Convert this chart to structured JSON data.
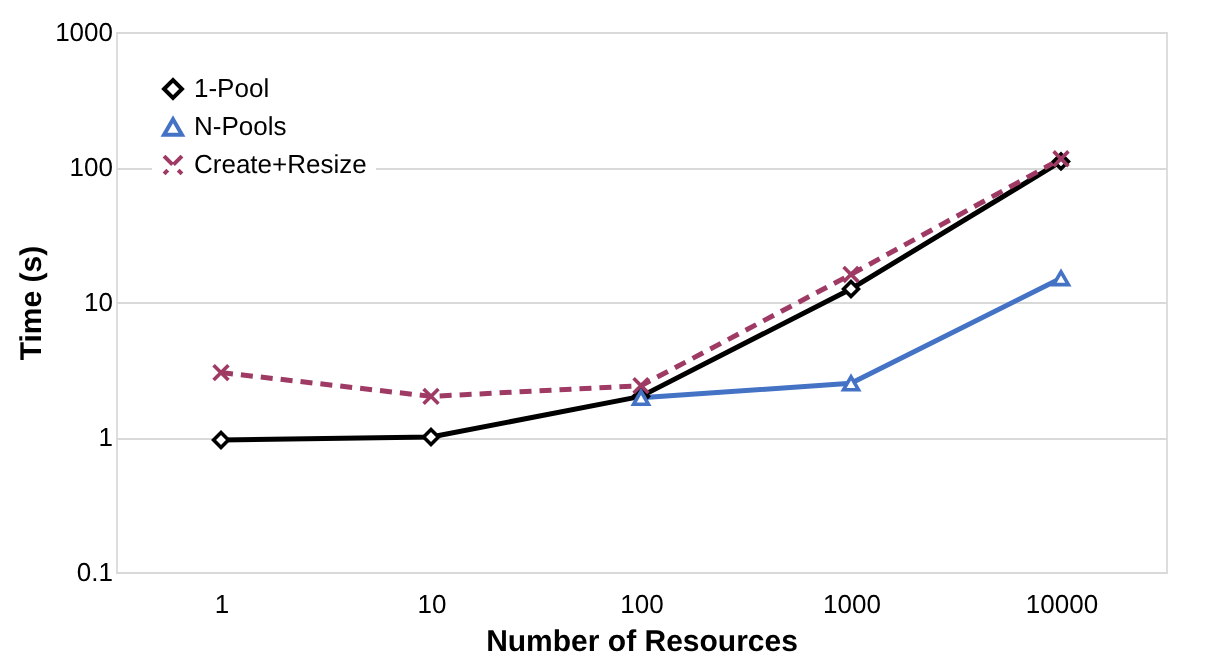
{
  "chart_data": {
    "type": "line",
    "xlabel": "Number of Resources",
    "ylabel": "Time (s)",
    "categories": [
      "1",
      "10",
      "100",
      "1000",
      "10000"
    ],
    "series": [
      {
        "name": "1-Pool",
        "color": "#000000",
        "marker": "diamond",
        "line_style": "solid",
        "values": [
          0.95,
          1.0,
          2.0,
          12.5,
          110
        ]
      },
      {
        "name": "N-Pools",
        "color": "#4472c4",
        "marker": "triangle",
        "line_style": "solid",
        "values": [
          null,
          null,
          1.95,
          2.5,
          15
        ]
      },
      {
        "name": "Create+Resize",
        "color": "#9e3a64",
        "marker": "cross",
        "line_style": "dashed",
        "values": [
          3.0,
          2.0,
          2.4,
          16,
          115
        ]
      }
    ],
    "log": "y",
    "ylim": [
      0.1,
      1000
    ],
    "yticks": [
      0.1,
      1,
      10,
      100,
      1000
    ],
    "grid": "y",
    "legend": "top left"
  }
}
